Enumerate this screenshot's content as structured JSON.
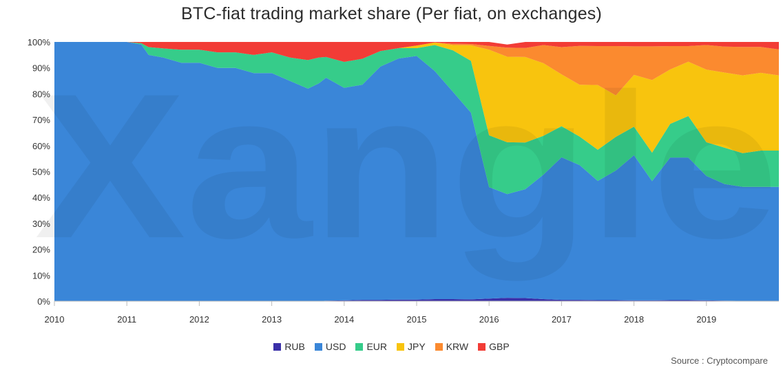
{
  "chart_data": {
    "type": "area",
    "stacked": true,
    "normalized": true,
    "title": "BTC-fiat trading market share (Per fiat, on exchanges)",
    "xlabel": "",
    "ylabel": "",
    "xlim": [
      2010,
      2020
    ],
    "ylim": [
      0,
      100
    ],
    "x_ticks": [
      "2010",
      "2011",
      "2012",
      "2013",
      "2014",
      "2015",
      "2016",
      "2017",
      "2018",
      "2019"
    ],
    "y_ticks": [
      "0%",
      "10%",
      "20%",
      "30%",
      "40%",
      "50%",
      "60%",
      "70%",
      "80%",
      "90%",
      "100%"
    ],
    "grid": false,
    "legend_position": "bottom",
    "x": [
      2010.0,
      2010.5,
      2011.0,
      2011.2,
      2011.3,
      2011.5,
      2011.75,
      2012.0,
      2012.25,
      2012.5,
      2012.75,
      2013.0,
      2013.25,
      2013.5,
      2013.65,
      2013.75,
      2014.0,
      2014.25,
      2014.5,
      2014.75,
      2015.0,
      2015.25,
      2015.5,
      2015.75,
      2016.0,
      2016.25,
      2016.5,
      2016.75,
      2017.0,
      2017.25,
      2017.5,
      2017.75,
      2018.0,
      2018.25,
      2018.5,
      2018.75,
      2019.0,
      2019.25,
      2019.5,
      2019.75,
      2020.0
    ],
    "series": [
      {
        "name": "RUB",
        "color": "#3a2fa8",
        "values": [
          0,
          0,
          0,
          0,
          0,
          0,
          0,
          0,
          0,
          0,
          0,
          0,
          0,
          0,
          0,
          0.2,
          0.3,
          0.5,
          0.5,
          0.6,
          0.6,
          0.8,
          0.8,
          0.7,
          1.0,
          1.3,
          1.2,
          0.8,
          0.5,
          0.5,
          0.4,
          0.4,
          0.3,
          0.3,
          0.4,
          0.4,
          0.3,
          0.2,
          0.1,
          0.1,
          0.1
        ]
      },
      {
        "name": "USD",
        "color": "#3a86d8",
        "values": [
          100,
          100,
          100,
          99,
          95,
          94,
          92,
          92,
          90,
          90,
          88,
          88,
          85,
          82,
          84,
          86,
          82,
          83,
          90,
          93,
          94,
          88,
          80,
          72,
          43,
          40,
          42,
          48,
          55,
          52,
          46,
          50,
          56,
          46,
          55,
          55,
          48,
          45,
          44,
          44,
          44
        ]
      },
      {
        "name": "EUR",
        "color": "#36cc8a",
        "values": [
          0,
          0,
          0,
          0.5,
          3,
          3.5,
          5,
          5,
          6,
          6,
          7,
          8,
          9,
          11,
          10,
          8,
          10,
          10,
          6,
          4,
          3,
          10,
          16,
          20,
          20,
          20,
          18,
          15,
          12,
          11,
          12,
          13,
          11,
          11,
          13,
          16,
          13,
          14,
          13,
          14,
          14
        ]
      },
      {
        "name": "JPY",
        "color": "#f8c40e",
        "values": [
          0,
          0,
          0,
          0,
          0,
          0,
          0,
          0,
          0,
          0,
          0,
          0,
          0,
          0,
          0,
          0,
          0,
          0,
          0,
          0,
          1,
          1,
          2,
          6,
          33,
          33,
          33,
          28,
          20,
          20,
          25,
          16,
          20,
          28,
          21,
          21,
          28,
          29,
          30,
          30,
          29
        ]
      },
      {
        "name": "KRW",
        "color": "#fb8a2f",
        "values": [
          0,
          0,
          0,
          0,
          0,
          0,
          0,
          0,
          0,
          0,
          0,
          0,
          0,
          0,
          0,
          0,
          0,
          0,
          0,
          0,
          0,
          0,
          0.5,
          0.5,
          1.5,
          3.5,
          3.5,
          7,
          10.5,
          15,
          15,
          19,
          11,
          13,
          9,
          6,
          9.5,
          10,
          11,
          10,
          10
        ]
      },
      {
        "name": "GBP",
        "color": "#f23c36",
        "values": [
          0,
          0,
          0,
          0.5,
          2,
          2.5,
          3,
          3,
          4,
          4,
          5,
          4,
          6,
          7,
          6,
          5.8,
          7.7,
          6.5,
          3.5,
          2.4,
          1.4,
          0.2,
          0.7,
          0.8,
          1.5,
          1.2,
          2.3,
          1.2,
          2,
          1.5,
          1.6,
          1.6,
          1.7,
          1.7,
          1.6,
          1.6,
          1.2,
          1.8,
          1.9,
          1.9,
          2.9
        ]
      }
    ]
  },
  "watermark": "Xangle",
  "source": "Source : Cryptocompare"
}
